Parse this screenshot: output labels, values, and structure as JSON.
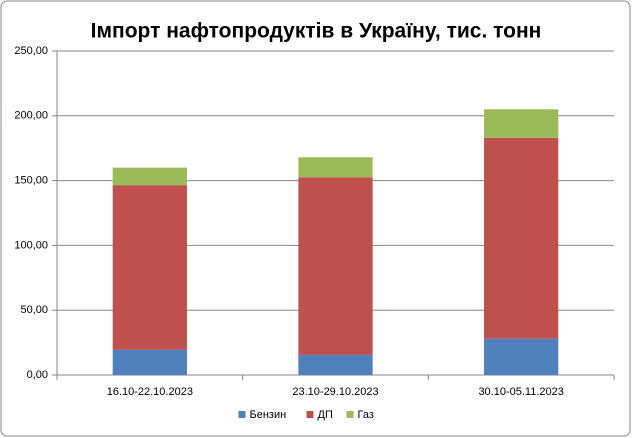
{
  "chart_data": {
    "type": "stacked-bar",
    "title": "Імпорт нафтопродуктів в Україну, тис. тонн",
    "categories": [
      "16.10-22.10.2023",
      "23.10-29.10.2023",
      "30.10-05.11.2023"
    ],
    "series": [
      {
        "name": "Бензин",
        "color": "#4f81bd",
        "values": [
          19.5,
          15.5,
          28
        ]
      },
      {
        "name": "ДП",
        "color": "#c0504d",
        "values": [
          127,
          137,
          155
        ]
      },
      {
        "name": "Газ",
        "color": "#9bbb59",
        "values": [
          13.5,
          15.5,
          22
        ]
      }
    ],
    "ylim": [
      0,
      250
    ],
    "yticks": [
      {
        "value": 0,
        "label": "0,00"
      },
      {
        "value": 50,
        "label": "50,00"
      },
      {
        "value": 100,
        "label": "100,00"
      },
      {
        "value": 150,
        "label": "150,00"
      },
      {
        "value": 200,
        "label": "200,00"
      },
      {
        "value": 250,
        "label": "250,00"
      }
    ],
    "grid": true,
    "legend": "bottom"
  }
}
